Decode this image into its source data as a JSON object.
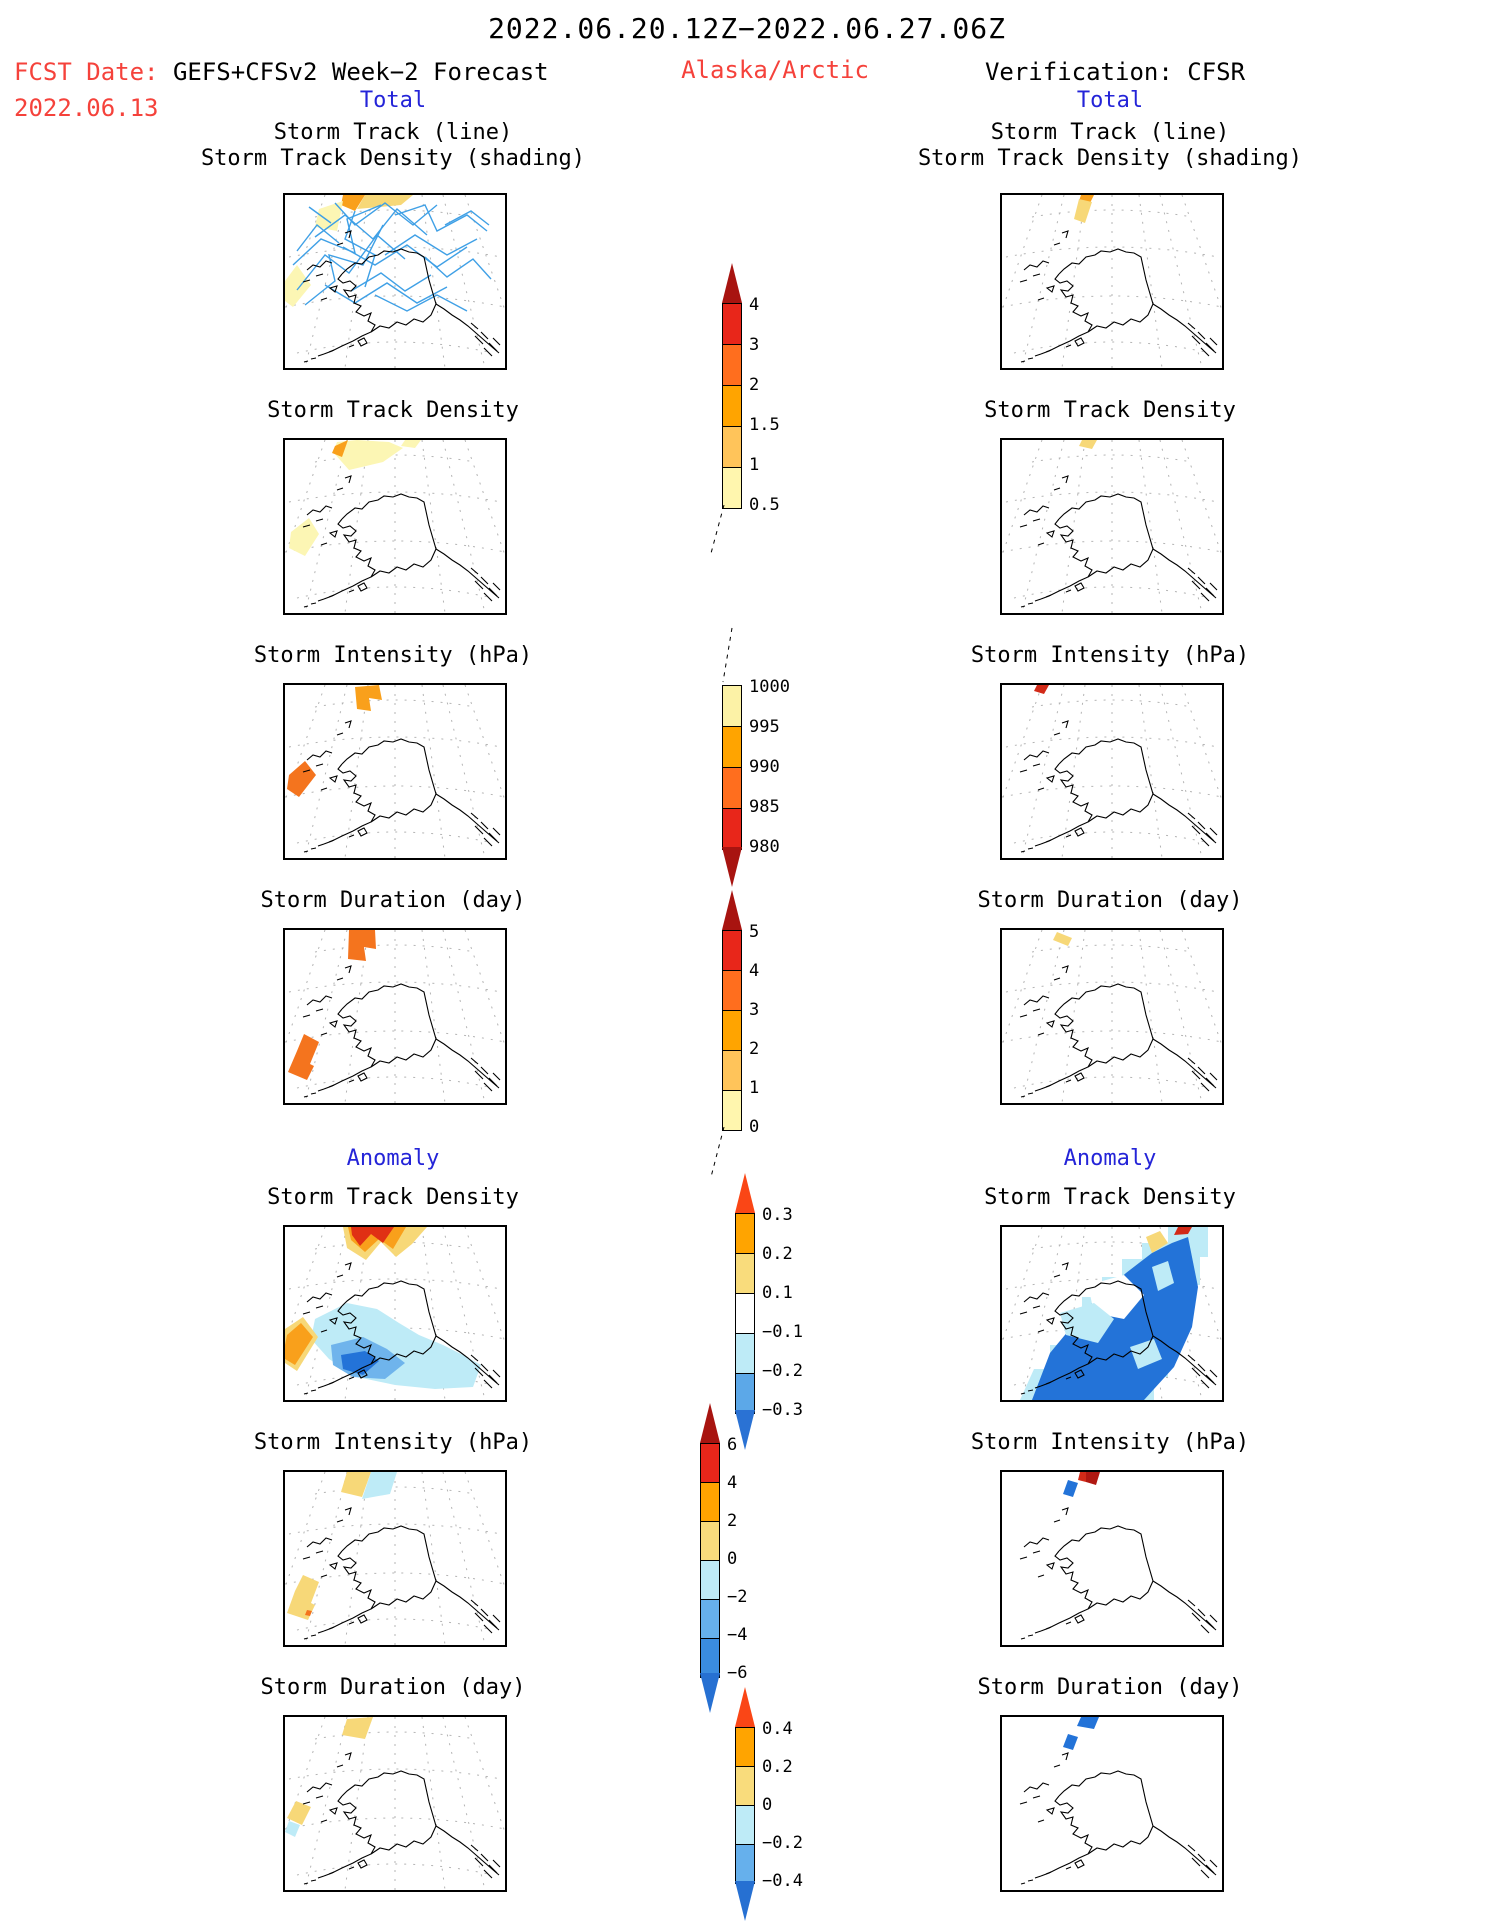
{
  "header": {
    "date_range": "2022.06.20.12Z−2022.06.27.06Z",
    "fcst_label": "FCST Date:",
    "fcst_model": "GEFS+CFSv2 Week−2 Forecast",
    "fcst_date": "2022.06.13",
    "region": "Alaska/Arctic",
    "verification": "Verification: CFSR"
  },
  "sections": {
    "total": "Total",
    "anomaly": "Anomaly"
  },
  "row_titles": {
    "r1a": "Storm Track (line)",
    "r1b": "Storm Track Density (shading)",
    "r2": "Storm Track Density",
    "r3": "Storm Intensity (hPa)",
    "r4": "Storm Duration (day)",
    "r5": "Storm Track Density",
    "r6": "Storm Intensity (hPa)",
    "r7": "Storm Duration (day)"
  },
  "colorbars": [
    {
      "id": "storm-track-density-total",
      "ticks": [
        "4",
        "3",
        "2",
        "1.5",
        "1",
        "0.5"
      ],
      "colors": [
        "#E8261A",
        "#FF6E1E",
        "#FFA400",
        "#FFC45A",
        "#FFF6AE"
      ],
      "arrow_top": "#A81410",
      "arrow_bottom": null
    },
    {
      "id": "storm-intensity-total",
      "ticks": [
        "1000",
        "995",
        "990",
        "985",
        "980"
      ],
      "colors": [
        "#FCF2A6",
        "#FFA400",
        "#FF6E1E",
        "#E8261A"
      ],
      "arrow_top": null,
      "arrow_bottom": "#A81410"
    },
    {
      "id": "storm-duration-total",
      "ticks": [
        "5",
        "4",
        "3",
        "2",
        "1",
        "0"
      ],
      "colors": [
        "#E8261A",
        "#FF6E1E",
        "#FFA400",
        "#FFC45A",
        "#FFF6AE"
      ],
      "arrow_top": "#A81410",
      "arrow_bottom": null
    },
    {
      "id": "storm-track-density-anomaly",
      "ticks": [
        "0.3",
        "0.2",
        "0.1",
        "−0.1",
        "−0.2",
        "−0.3"
      ],
      "colors": [
        "#FFA400",
        "#F9DC7C",
        "#FFFFFF",
        "#BEEBF7",
        "#5CA8E8"
      ],
      "arrow_top": "#FA4616",
      "arrow_bottom": "#2A72D4"
    },
    {
      "id": "storm-intensity-anomaly",
      "ticks": [
        "6",
        "4",
        "2",
        "0",
        "−2",
        "−4",
        "−6"
      ],
      "colors": [
        "#E8261A",
        "#FFA400",
        "#F9DC7C",
        "#BEEBF7",
        "#66B0EC",
        "#3A8CE0"
      ],
      "arrow_top": "#A81410",
      "arrow_bottom": "#2670D2"
    },
    {
      "id": "storm-duration-anomaly",
      "ticks": [
        "0.4",
        "0.2",
        "0",
        "−0.2",
        "−0.4"
      ],
      "colors": [
        "#FFA400",
        "#F9DC7C",
        "#BEEBF7",
        "#66B0EC"
      ],
      "arrow_top": "#FA4616",
      "arrow_bottom": "#2670D2"
    }
  ],
  "colors": {
    "red_text": "#F5423B",
    "blue_text": "#2424D8",
    "track_line": "#3FA0E6",
    "pale_yellow": "#FCF6B4",
    "gold": "#F7D878",
    "orange": "#F9A01B",
    "orange_red": "#F4741E",
    "red": "#E03014",
    "dark_red": "#B01812",
    "cyan": "#BEEBF7",
    "light_blue": "#6FB4EC",
    "strong_blue": "#2373D8"
  },
  "chart_data": {
    "type": "heatmap",
    "title": "2022.06.20.12Z−2022.06.27.06Z",
    "subtitle": "GEFS+CFSv2 Week−2 Forecast (FCST Date 2022.06.13) vs Verification CFSR — Alaska/Arctic storm statistics",
    "layout": "2 columns (Forecast | Verification) × 7 map rows (4 Total, 3 Anomaly); shared center colorbars; maps are polar-sector views of Alaska with gray dashed graticule",
    "rows": [
      {
        "section": "Total",
        "title": "Storm Track (line) / Storm Track Density (shading)",
        "forecast": "many crisscrossing blue storm-track lines over NW Alaska and Arctic Ocean; density shading 0.5–2 (pale yellow, small orange wedge) along north/west edges",
        "verification": "single short pale-yellow/orange density streak at top; no dense track lines"
      },
      {
        "section": "Total",
        "title": "Storm Track Density",
        "forecast": "pale-yellow blob (0.5–1) with small orange wedge (~2) at top; pale-yellow patch at lower-left",
        "verification": "tiny pale-yellow streak at top"
      },
      {
        "section": "Total",
        "title": "Storm Intensity (hPa)",
        "forecast": "orange hook-shaped patch (~990–995 hPa) at top; orange band at lower-left",
        "verification": "small red dash (~980–985 hPa) near top-left"
      },
      {
        "section": "Total",
        "title": "Storm Duration (day)",
        "forecast": "orange patches (~2–3 day) at top and lower-left",
        "verification": "small gold dash (~1 day) at top"
      },
      {
        "section": "Anomaly",
        "title": "Storm Track Density",
        "forecast": "positive blob at top (red core >0.3 with orange/gold fringe); orange/gold streak at left; negative region (cyan −0.1–−0.2 with blue blobs to −0.3) over Bering Sea and SW Alaska",
        "verification": "large negative blue fan (−0.2 to below −0.3) covering most of domain with cyan/white inliers; small red+gold positive streak at top right"
      },
      {
        "section": "Anomaly",
        "title": "Storm Intensity (hPa)",
        "forecast": "gold (+) and cyan (−) dashes at top; gold patch with tiny orange spot at lower-left",
        "verification": "dark-red positive mark (>6 hPa) at top with blue negative dash (≈−4) below it"
      },
      {
        "section": "Anomaly",
        "title": "Storm Duration (day)",
        "forecast": "gold dash at top; gold band and cyan dash at lower-left",
        "verification": "blue negative marks (below −0.4 day) at top"
      }
    ],
    "colorbar_levels": {
      "storm_track_density_total": [
        0.5,
        1,
        1.5,
        2,
        3,
        4
      ],
      "storm_intensity_total_hPa": [
        980,
        985,
        990,
        995,
        1000
      ],
      "storm_duration_total_day": [
        0,
        1,
        2,
        3,
        4,
        5
      ],
      "storm_track_density_anomaly": [
        -0.3,
        -0.2,
        -0.1,
        0.1,
        0.2,
        0.3
      ],
      "storm_intensity_anomaly_hPa": [
        -6,
        -4,
        -2,
        0,
        2,
        4,
        6
      ],
      "storm_duration_anomaly_day": [
        -0.4,
        -0.2,
        0,
        0.2,
        0.4
      ]
    },
    "legend_position": "center column between map columns",
    "grid": "gray dashed graticule on map panels"
  }
}
